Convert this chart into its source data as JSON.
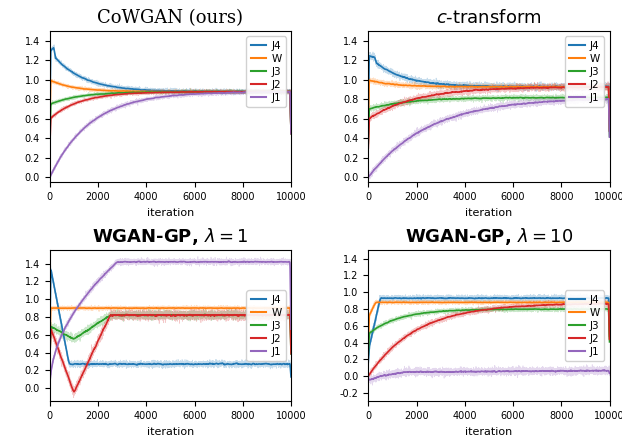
{
  "titles": [
    "CoWGAN (ours)",
    "c-transform",
    "WGAN-GP, $\\lambda = 1$",
    "WGAN-GP, $\\lambda = 10$"
  ],
  "title_fontsizes": [
    14,
    14,
    14,
    14
  ],
  "xlabel": "iteration",
  "xlim": [
    0,
    10000
  ],
  "xticks": [
    0,
    2000,
    4000,
    6000,
    8000,
    10000
  ],
  "colors": {
    "J4": "#1f77b4",
    "W": "#ff7f0e",
    "J3": "#2ca02c",
    "J2": "#d62728",
    "J1": "#9467bd"
  },
  "legend_labels": [
    "J4",
    "W",
    "J3",
    "J2",
    "J1"
  ],
  "n_iter": 10000,
  "seed": 42
}
